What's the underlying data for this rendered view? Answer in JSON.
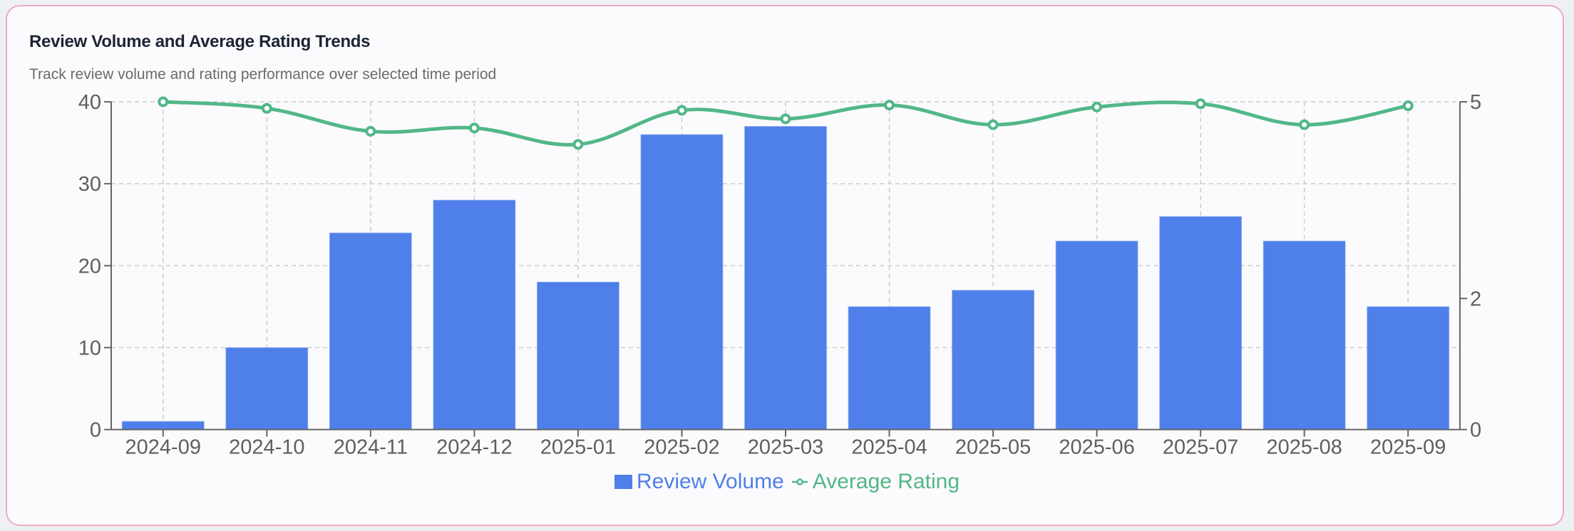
{
  "card": {
    "title": "Review Volume and Average Rating Trends",
    "subtitle": "Track review volume and rating performance over selected time period"
  },
  "colors": {
    "bar": "#4f7fe9",
    "line": "#52b788",
    "grid": "#cccccc",
    "axis": "#666666",
    "tick_text": "#5f5f5f",
    "card_border": "#f0a9c1"
  },
  "legend": {
    "bar_label": "Review Volume",
    "line_label": "Average Rating"
  },
  "chart_data": {
    "type": "bar+line",
    "title": "Review Volume and Average Rating Trends",
    "subtitle": "Track review volume and rating performance over selected time period",
    "categories": [
      "2024-09",
      "2024-10",
      "2024-11",
      "2024-12",
      "2025-01",
      "2025-02",
      "2025-03",
      "2025-04",
      "2025-05",
      "2025-06",
      "2025-07",
      "2025-08",
      "2025-09"
    ],
    "series": [
      {
        "name": "Review Volume",
        "type": "bar",
        "axis": "left",
        "values": [
          1,
          10,
          24,
          28,
          18,
          36,
          37,
          15,
          17,
          23,
          26,
          23,
          15
        ]
      },
      {
        "name": "Average Rating",
        "type": "line",
        "smooth": true,
        "axis": "right",
        "values": [
          5.0,
          4.9,
          4.55,
          4.6,
          4.35,
          4.87,
          4.74,
          4.95,
          4.65,
          4.92,
          4.97,
          4.65,
          4.94
        ]
      }
    ],
    "left_axis": {
      "ylim": [
        0,
        40
      ],
      "ticks": [
        0,
        10,
        20,
        30,
        40
      ]
    },
    "right_axis": {
      "ylim": [
        0,
        5
      ],
      "ticks": [
        0,
        2,
        5
      ]
    },
    "xlabel": "",
    "ylabel": "",
    "grid": true,
    "legend_position": "bottom"
  }
}
